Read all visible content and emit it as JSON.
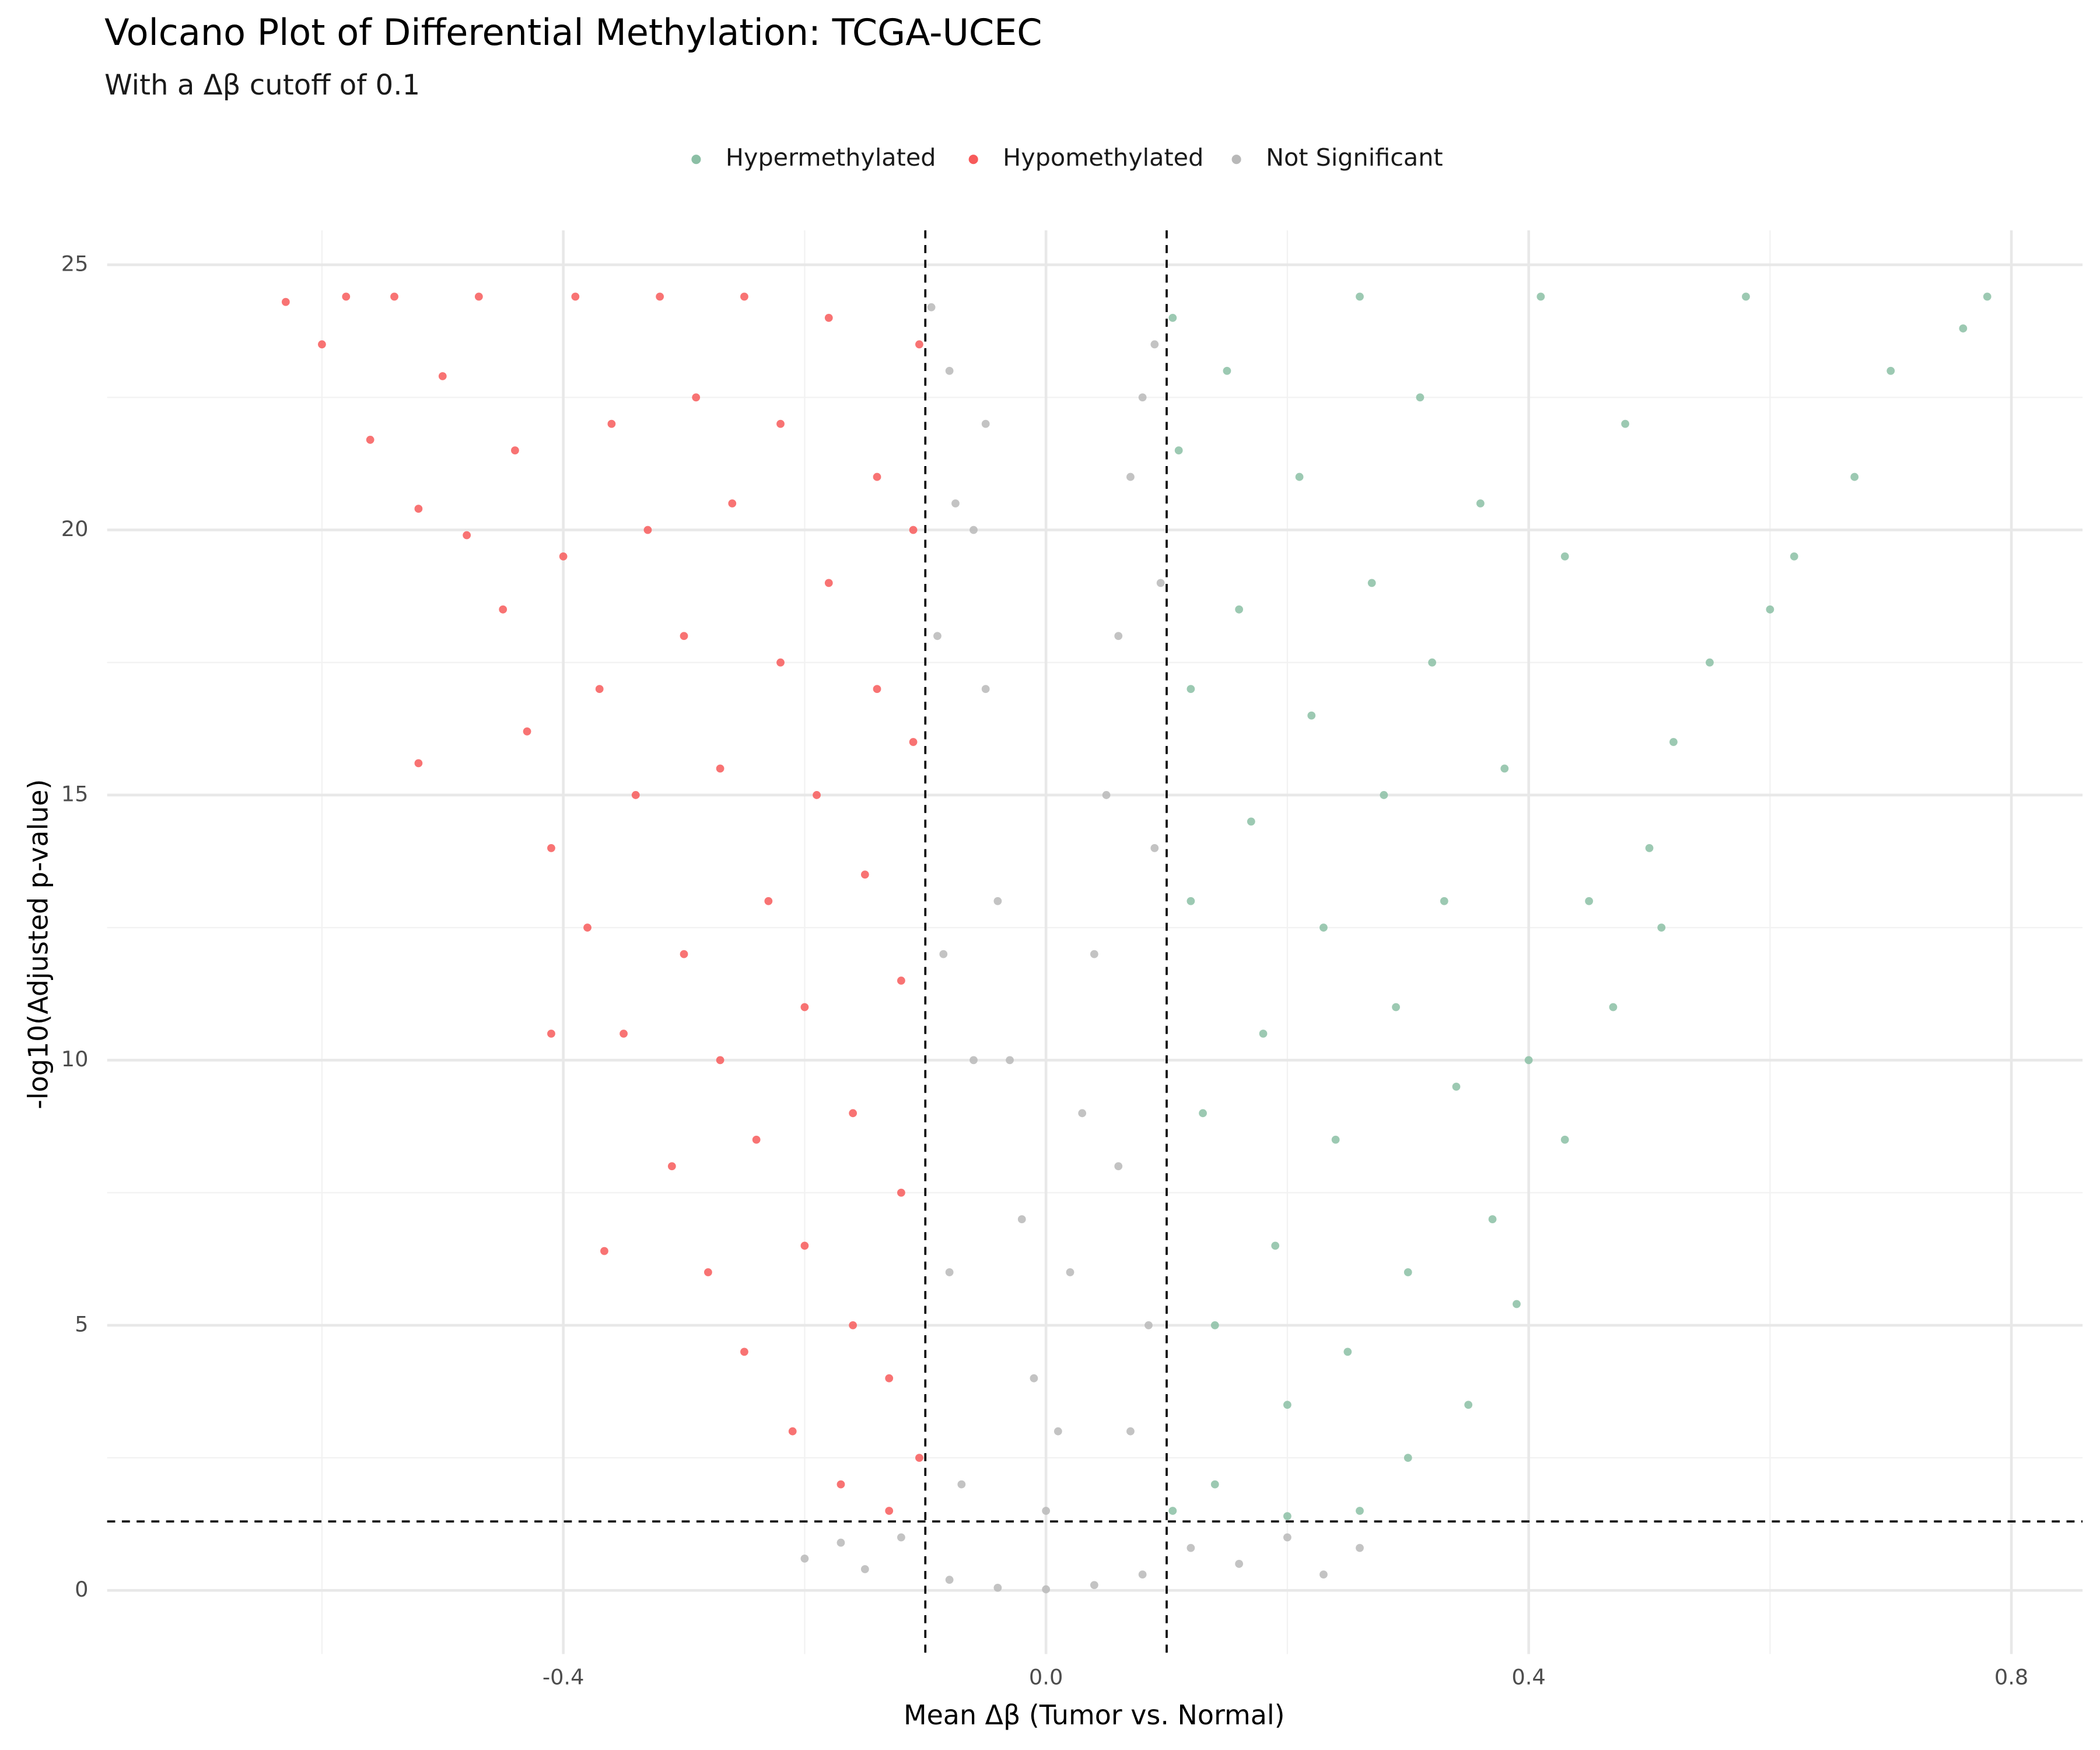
{
  "chart_data": {
    "type": "scatter",
    "title": "Volcano Plot of Differential Methylation: TCGA-UCEC",
    "subtitle": "With a Δβ cutoff of 0.1",
    "xlabel": "Mean Δβ (Tumor vs. Normal)",
    "ylabel": "-log10(Adjusted p-value)",
    "legend": "top",
    "grid": true,
    "xlim": [
      -0.778,
      0.859
    ],
    "ylim": [
      -1.2,
      25.65
    ],
    "xticks": [
      -0.4,
      {
        "value": 0,
        "label": "0.0"
      },
      0.4,
      0.8
    ],
    "yticks": [
      0,
      5,
      10,
      15,
      20,
      25
    ],
    "xminor": [
      -0.6,
      -0.2,
      0.2,
      0.6
    ],
    "yminor": [
      2.5,
      7.5,
      12.5,
      17.5,
      22.5
    ],
    "vlines": [
      -0.1,
      0.1
    ],
    "hline": 1.3,
    "series": [
      {
        "name": "Hypermethylated",
        "color": "#8bbfa5",
        "x": [
          0.78,
          0.76,
          0.7,
          0.67,
          0.62,
          0.6,
          0.58,
          0.55,
          0.52,
          0.51,
          0.5,
          0.48,
          0.47,
          0.45,
          0.43,
          0.43,
          0.41,
          0.4,
          0.39,
          0.38,
          0.37,
          0.36,
          0.35,
          0.34,
          0.33,
          0.32,
          0.31,
          0.3,
          0.3,
          0.29,
          0.28,
          0.27,
          0.26,
          0.26,
          0.25,
          0.24,
          0.23,
          0.22,
          0.21,
          0.2,
          0.2,
          0.19,
          0.18,
          0.17,
          0.16,
          0.15,
          0.14,
          0.14,
          0.13,
          0.12,
          0.12,
          0.11,
          0.105,
          0.105
        ],
        "values": [
          24.4,
          23.8,
          23.0,
          21.0,
          19.5,
          18.5,
          24.4,
          17.5,
          16.0,
          12.5,
          14.0,
          22.0,
          11.0,
          13.0,
          8.5,
          19.5,
          24.4,
          10.0,
          5.4,
          15.5,
          7.0,
          20.5,
          3.5,
          9.5,
          13.0,
          17.5,
          22.5,
          2.5,
          6.0,
          11.0,
          15.0,
          19.0,
          24.4,
          1.5,
          4.5,
          8.5,
          12.5,
          16.5,
          21.0,
          1.4,
          3.5,
          6.5,
          10.5,
          14.5,
          18.5,
          23.0,
          2.0,
          5.0,
          9.0,
          13.0,
          17.0,
          21.5,
          24.0,
          1.5
        ]
      },
      {
        "name": "Hypomethylated",
        "color": "#f75a5a",
        "x": [
          -0.63,
          -0.6,
          -0.58,
          -0.56,
          -0.54,
          -0.52,
          -0.5,
          -0.48,
          -0.47,
          -0.45,
          -0.44,
          -0.43,
          -0.41,
          -0.4,
          -0.39,
          -0.38,
          -0.37,
          -0.36,
          -0.35,
          -0.34,
          -0.33,
          -0.32,
          -0.31,
          -0.3,
          -0.3,
          -0.29,
          -0.28,
          -0.27,
          -0.27,
          -0.26,
          -0.25,
          -0.25,
          -0.24,
          -0.23,
          -0.22,
          -0.22,
          -0.21,
          -0.2,
          -0.2,
          -0.19,
          -0.18,
          -0.18,
          -0.17,
          -0.16,
          -0.16,
          -0.15,
          -0.14,
          -0.14,
          -0.13,
          -0.13,
          -0.12,
          -0.12,
          -0.11,
          -0.11,
          -0.105,
          -0.105,
          -0.366,
          -0.52,
          -0.41
        ],
        "values": [
          24.3,
          23.5,
          24.4,
          21.7,
          24.4,
          20.4,
          22.9,
          19.9,
          24.4,
          18.5,
          21.5,
          16.2,
          14.0,
          19.5,
          24.4,
          12.5,
          17.0,
          22.0,
          10.5,
          15.0,
          20.0,
          24.4,
          8.0,
          12.0,
          18.0,
          22.5,
          6.0,
          10.0,
          15.5,
          20.5,
          24.4,
          4.5,
          8.5,
          13.0,
          17.5,
          22.0,
          3.0,
          6.5,
          11.0,
          15.0,
          19.0,
          24.0,
          2.0,
          5.0,
          9.0,
          13.5,
          17.0,
          21.0,
          1.5,
          4.0,
          7.5,
          11.5,
          16.0,
          20.0,
          23.5,
          2.5,
          6.4,
          15.6,
          10.5
        ]
      },
      {
        "name": "Not Significant",
        "color": "#b8b8b8",
        "x": [
          -0.095,
          -0.08,
          -0.06,
          -0.05,
          -0.04,
          -0.03,
          -0.02,
          -0.01,
          0.0,
          0.01,
          0.02,
          0.03,
          0.04,
          0.05,
          0.06,
          0.07,
          0.08,
          0.09,
          -0.09,
          -0.085,
          -0.08,
          -0.07,
          -0.06,
          0.06,
          0.07,
          0.09,
          0.085,
          -0.2,
          -0.17,
          -0.15,
          -0.12,
          -0.08,
          -0.04,
          0.0,
          0.04,
          0.08,
          0.12,
          0.16,
          0.2,
          0.23,
          0.26,
          -0.05,
          -0.075,
          0.095
        ],
        "values": [
          24.2,
          23.0,
          20.0,
          17.0,
          13.0,
          10.0,
          7.0,
          4.0,
          1.5,
          3.0,
          6.0,
          9.0,
          12.0,
          15.0,
          18.0,
          21.0,
          22.5,
          23.5,
          18.0,
          12.0,
          6.0,
          2.0,
          10.0,
          8.0,
          3.0,
          14.0,
          5.0,
          0.6,
          0.9,
          0.4,
          1.0,
          0.2,
          0.05,
          0.02,
          0.1,
          0.3,
          0.8,
          0.5,
          1.0,
          0.3,
          0.8,
          22.0,
          20.5,
          19.0
        ]
      }
    ]
  }
}
